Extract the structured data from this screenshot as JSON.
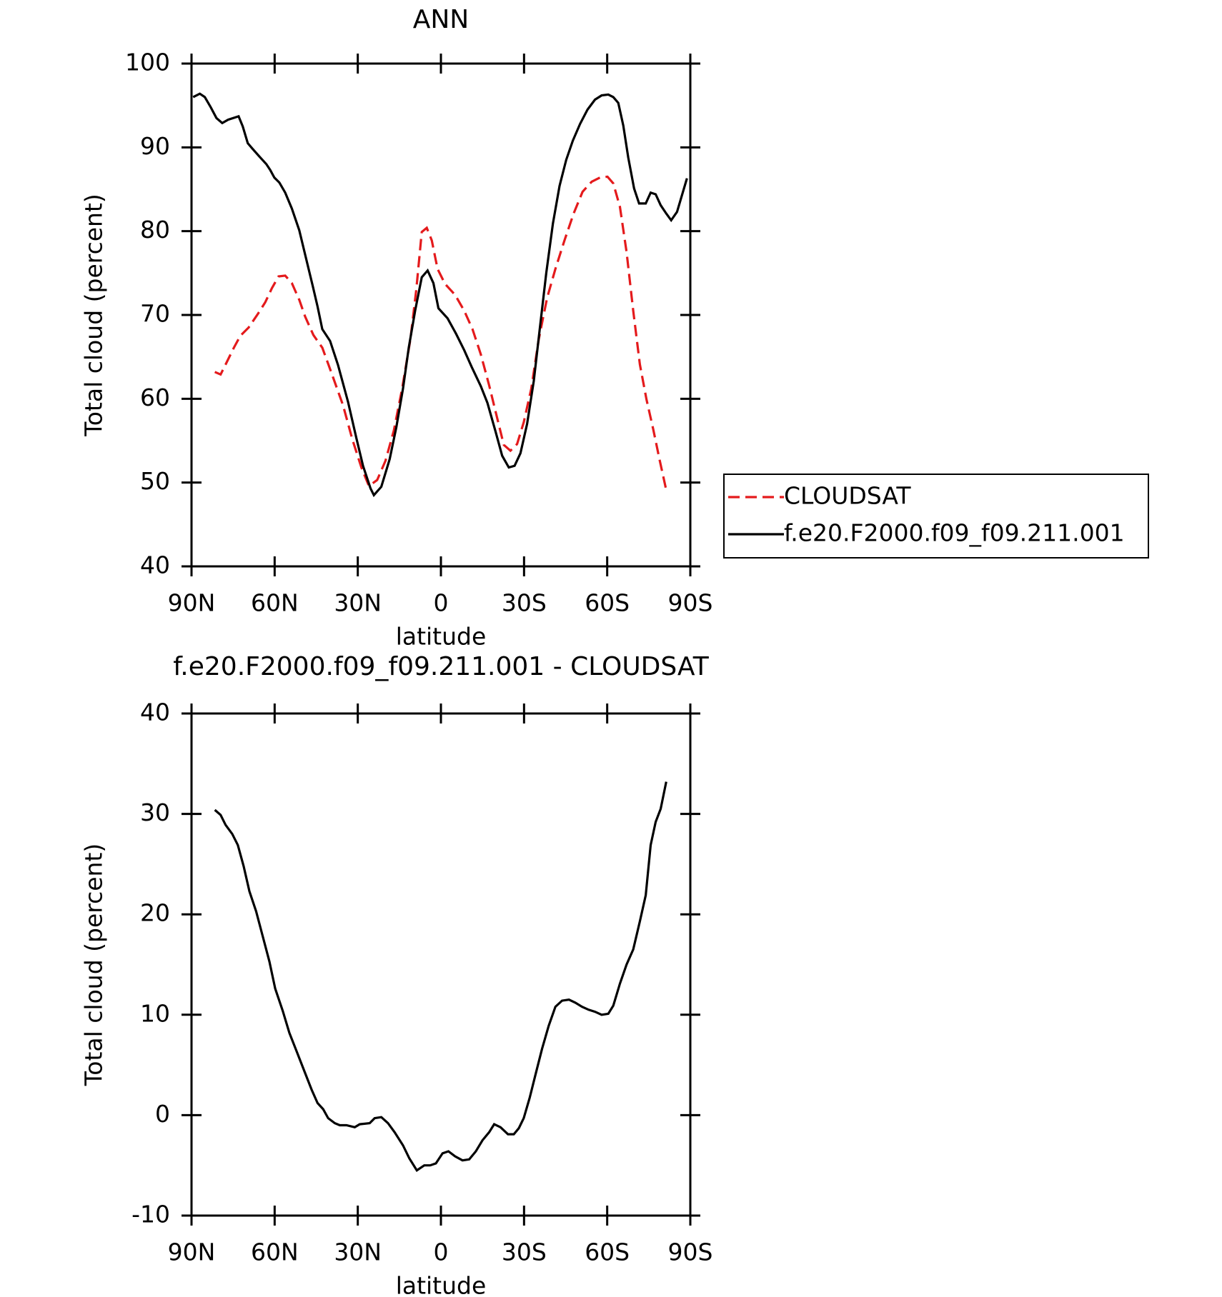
{
  "chart_data": [
    {
      "type": "line",
      "title": "ANN",
      "xlabel": "latitude",
      "ylabel": "Total cloud (percent)",
      "xlim": [
        90,
        -90
      ],
      "ylim": [
        40,
        100
      ],
      "xticks": [
        {
          "value": 90,
          "label": "90N"
        },
        {
          "value": 60,
          "label": "60N"
        },
        {
          "value": 30,
          "label": "30N"
        },
        0,
        {
          "value": -30,
          "label": "30S"
        },
        {
          "value": -60,
          "label": "60S"
        },
        {
          "value": -90,
          "label": "90S"
        }
      ],
      "yticks": [
        40,
        50,
        60,
        70,
        80,
        90,
        100
      ],
      "legend": "right",
      "series": [
        {
          "name": "CLOUDSAT",
          "color": "#e41a1c",
          "linestyle": "dashed",
          "x": [
            81.6,
            79.5,
            77.4,
            74.7,
            72.4,
            69.4,
            66.1,
            63.4,
            61,
            58.6,
            56.2,
            53.8,
            51.1,
            49,
            46,
            42.8,
            39.5,
            35.3,
            32,
            28.7,
            26,
            23,
            20,
            17,
            14,
            11,
            8.9,
            6.9,
            5.1,
            3.3,
            1.2,
            -1.5,
            -5.1,
            -8.4,
            -11.4,
            -14.4,
            -17.4,
            -20.3,
            -22.7,
            -25.1,
            -27.5,
            -29.9,
            -32.6,
            -35.3,
            -38.3,
            -41.3,
            -44.6,
            -47.9,
            -51.1,
            -54.4,
            -57.4,
            -60.1,
            -62.2,
            -64.6,
            -67,
            -69.4,
            -71.8,
            -74.2,
            -76.6,
            -79,
            -81.3
          ],
          "values": [
            63.2,
            62.9,
            64.3,
            66.1,
            67.5,
            68.5,
            70.1,
            71.5,
            73.2,
            74.6,
            74.7,
            73.8,
            71.8,
            69.8,
            67.6,
            66.1,
            63.1,
            59.2,
            55.2,
            51.8,
            49.6,
            50.3,
            52.6,
            56.2,
            61.2,
            67.1,
            73,
            79.9,
            80.4,
            78.9,
            75.5,
            73.7,
            72.4,
            70.5,
            68.3,
            65.3,
            61.6,
            57.7,
            54.5,
            53.8,
            54.6,
            57.2,
            61.2,
            67.1,
            72,
            75.5,
            78.9,
            82.1,
            84.7,
            85.9,
            86.4,
            86.5,
            85.7,
            82.9,
            77.5,
            70.5,
            64.1,
            59.9,
            56.4,
            52.6,
            49.1
          ]
        },
        {
          "name": "f.e20.F2000.f09_f09.211.001",
          "color": "#000000",
          "linestyle": "solid",
          "x": [
            89.4,
            87,
            85.2,
            83.1,
            81,
            78.9,
            76.8,
            73,
            71.5,
            69.7,
            67.9,
            65.5,
            63,
            61.6,
            60.1,
            58.3,
            56.2,
            53.8,
            51.1,
            49,
            46.3,
            44.5,
            42.8,
            40,
            37.1,
            33.5,
            30.5,
            28.1,
            25.4,
            24.2,
            21.5,
            18.5,
            16.1,
            13.7,
            11.6,
            9.3,
            6.9,
            4.8,
            2.7,
            0.9,
            -2.4,
            -5.4,
            -8.4,
            -11.1,
            -14.4,
            -16.8,
            -19.7,
            -22.1,
            -24.5,
            -26.6,
            -28.7,
            -31.1,
            -33.5,
            -35.6,
            -38,
            -40.4,
            -42.8,
            -45.2,
            -47.6,
            -50.2,
            -52.9,
            -55.6,
            -58,
            -60.4,
            -62.2,
            -64,
            -65.8,
            -67.6,
            -69.7,
            -71.5,
            -73.9,
            -75.7,
            -77.5,
            -79.3,
            -81.3,
            -83.1,
            -85.2,
            -88.8
          ],
          "values": [
            96.0,
            96.4,
            96.0,
            94.8,
            93.5,
            92.9,
            93.3,
            93.7,
            92.5,
            90.5,
            89.8,
            88.9,
            88.0,
            87.3,
            86.4,
            85.8,
            84.6,
            82.7,
            80.1,
            77.2,
            73.5,
            71,
            68.3,
            66.9,
            64,
            59.6,
            55.3,
            52,
            49.3,
            48.5,
            49.5,
            52.8,
            56.6,
            61.2,
            66.1,
            70.5,
            74.5,
            75.3,
            73.8,
            70.8,
            69.6,
            67.8,
            65.8,
            63.8,
            61.5,
            59.5,
            56.1,
            53.2,
            51.8,
            52,
            53.5,
            57,
            62.1,
            68.1,
            75,
            80.9,
            85.4,
            88.5,
            90.8,
            92.8,
            94.5,
            95.7,
            96.2,
            96.3,
            96,
            95.3,
            92.6,
            88.8,
            85.1,
            83.3,
            83.3,
            84.6,
            84.4,
            83.1,
            82.1,
            81.3,
            82.3,
            86.3
          ]
        }
      ]
    },
    {
      "type": "line",
      "title": "f.e20.F2000.f09_f09.211.001 - CLOUDSAT",
      "xlabel": "latitude",
      "ylabel": "Total cloud (percent)",
      "xlim": [
        90,
        -90
      ],
      "ylim": [
        -10,
        40
      ],
      "xticks": [
        {
          "value": 90,
          "label": "90N"
        },
        {
          "value": 60,
          "label": "60N"
        },
        {
          "value": 30,
          "label": "30N"
        },
        0,
        {
          "value": -30,
          "label": "30S"
        },
        {
          "value": -60,
          "label": "60S"
        },
        {
          "value": -90,
          "label": "90S"
        }
      ],
      "yticks": [
        -10,
        0,
        10,
        20,
        30,
        40
      ],
      "series": [
        {
          "color": "#000000",
          "linestyle": "solid",
          "x": [
            81.6,
            79.5,
            77.7,
            75.3,
            73.3,
            71.2,
            69.1,
            66.7,
            64.3,
            61.9,
            59.8,
            57.1,
            54.7,
            52,
            49.3,
            46.6,
            44.5,
            42.5,
            40.7,
            38.3,
            36.5,
            34.1,
            31.1,
            29.3,
            25.7,
            23.9,
            21.5,
            19.1,
            16.7,
            13.7,
            11.4,
            8.7,
            6,
            3.9,
            1.8,
            -0.6,
            -2.7,
            -5.1,
            -7.8,
            -10.2,
            -12.6,
            -15,
            -17.4,
            -19.2,
            -21.5,
            -24.2,
            -26.3,
            -28.1,
            -29.9,
            -32,
            -34.1,
            -36.5,
            -38.9,
            -41.3,
            -43.7,
            -46.2,
            -48.5,
            -50.9,
            -53.3,
            -55.6,
            -58,
            -60.4,
            -62.2,
            -64.6,
            -67,
            -69.4,
            -71.8,
            -73.9,
            -75.7,
            -77.5,
            -79.3,
            -81.3
          ],
          "values": [
            30.4,
            29.9,
            28.9,
            28.0,
            26.9,
            24.8,
            22.3,
            20.3,
            17.8,
            15.3,
            12.6,
            10.4,
            8.2,
            6.3,
            4.4,
            2.5,
            1.2,
            0.6,
            -0.3,
            -0.8,
            -1.0,
            -1.0,
            -1.2,
            -0.9,
            -0.8,
            -0.3,
            -0.2,
            -0.8,
            -1.7,
            -3.0,
            -4.3,
            -5.5,
            -5.0,
            -5.0,
            -4.8,
            -3.8,
            -3.6,
            -4.1,
            -4.5,
            -4.4,
            -3.6,
            -2.5,
            -1.7,
            -0.9,
            -1.2,
            -1.9,
            -1.9,
            -1.3,
            -0.3,
            1.7,
            4.0,
            6.6,
            8.9,
            10.8,
            11.4,
            11.5,
            11.2,
            10.8,
            10.5,
            10.3,
            10.0,
            10.1,
            10.9,
            13.1,
            15,
            16.5,
            19.3,
            21.9,
            26.9,
            29.2,
            30.5,
            33.2
          ]
        }
      ]
    }
  ]
}
